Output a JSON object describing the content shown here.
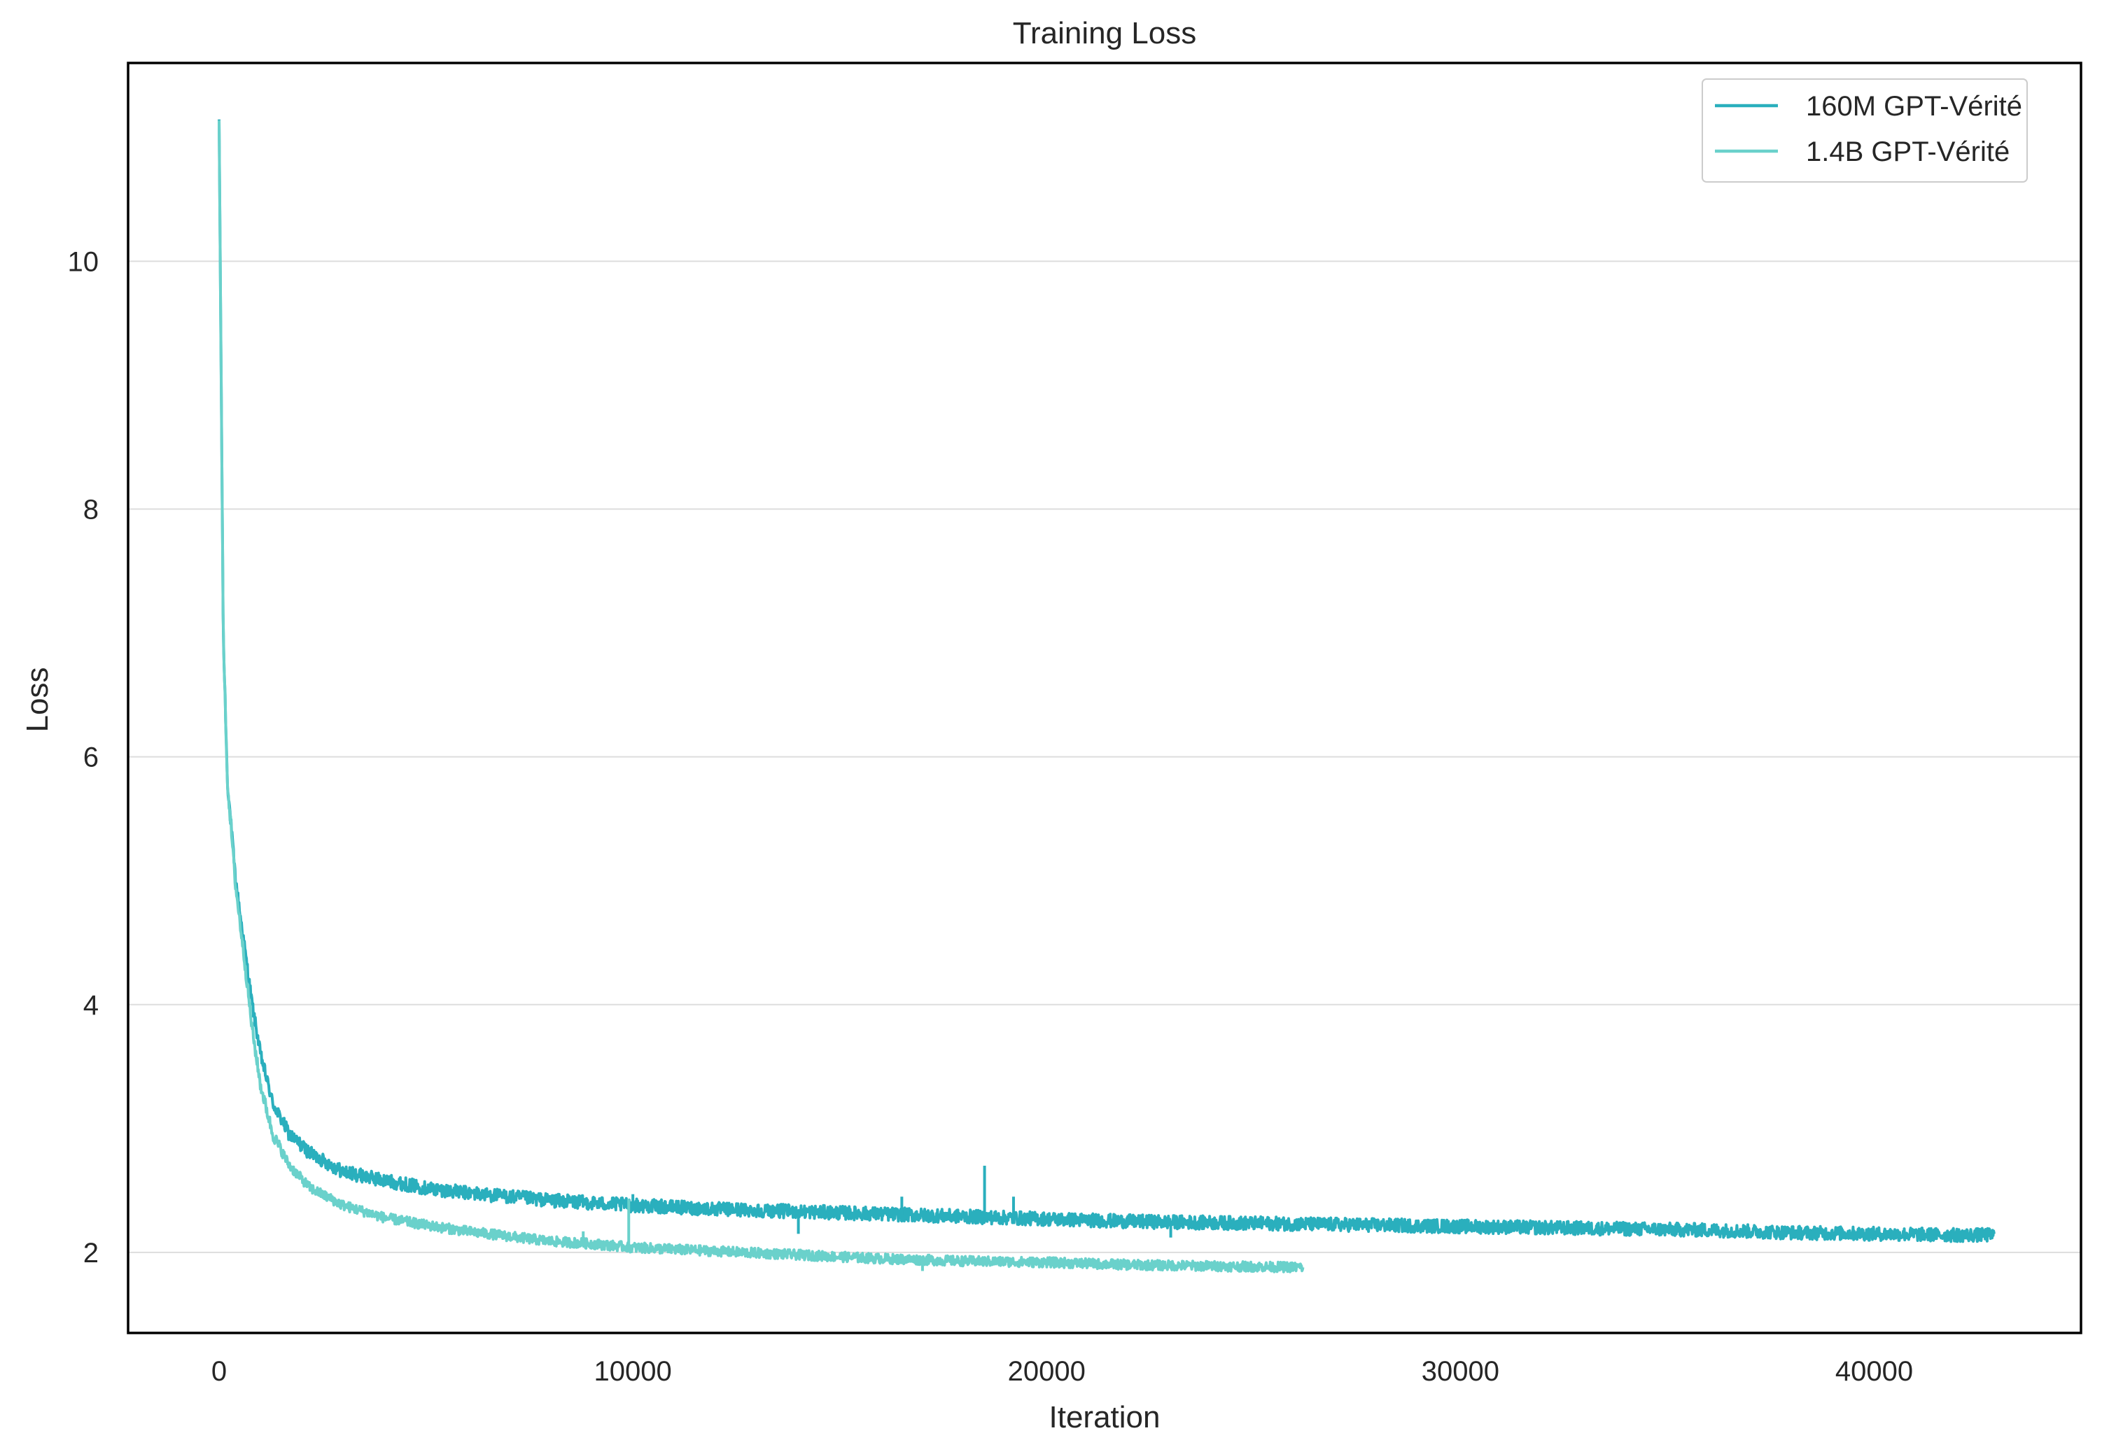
{
  "chart_data": {
    "type": "line",
    "title": "Training Loss",
    "xlabel": "Iteration",
    "ylabel": "Loss",
    "xlim": [
      -2200,
      45000
    ],
    "ylim": [
      1.35,
      11.6
    ],
    "xticks": [
      0,
      10000,
      20000,
      30000,
      40000
    ],
    "xtick_labels": [
      "0",
      "10000",
      "20000",
      "30000",
      "40000"
    ],
    "yticks": [
      2,
      4,
      6,
      8,
      10
    ],
    "ytick_labels": [
      "2",
      "4",
      "6",
      "8",
      "10"
    ],
    "grid": "horizontal",
    "legend_position": "top-right",
    "series": [
      {
        "name": "160M GPT-Vérité",
        "color": "#2aafbd",
        "points": [
          [
            0,
            11.1
          ],
          [
            100,
            7.0
          ],
          [
            200,
            5.8
          ],
          [
            400,
            5.0
          ],
          [
            600,
            4.5
          ],
          [
            800,
            4.0
          ],
          [
            1000,
            3.6
          ],
          [
            1300,
            3.2
          ],
          [
            1700,
            2.95
          ],
          [
            2200,
            2.8
          ],
          [
            3000,
            2.65
          ],
          [
            4000,
            2.58
          ],
          [
            5000,
            2.52
          ],
          [
            6000,
            2.48
          ],
          [
            7000,
            2.45
          ],
          [
            8000,
            2.42
          ],
          [
            10000,
            2.38
          ],
          [
            12000,
            2.35
          ],
          [
            14000,
            2.33
          ],
          [
            16000,
            2.31
          ],
          [
            18000,
            2.29
          ],
          [
            20000,
            2.27
          ],
          [
            22000,
            2.25
          ],
          [
            24000,
            2.24
          ],
          [
            26000,
            2.23
          ],
          [
            28000,
            2.22
          ],
          [
            30000,
            2.21
          ],
          [
            32000,
            2.2
          ],
          [
            34000,
            2.19
          ],
          [
            36000,
            2.18
          ],
          [
            38000,
            2.16
          ],
          [
            40000,
            2.15
          ],
          [
            42000,
            2.14
          ],
          [
            42900,
            2.14
          ]
        ],
        "spikes": [
          [
            18500,
            2.7
          ],
          [
            10000,
            2.47
          ],
          [
            19200,
            2.45
          ],
          [
            16500,
            2.45
          ],
          [
            14000,
            2.15
          ],
          [
            23000,
            2.12
          ]
        ]
      },
      {
        "name": "1.4B GPT-Vérité",
        "color": "#6ad1cb",
        "points": [
          [
            0,
            11.1
          ],
          [
            100,
            7.0
          ],
          [
            200,
            5.8
          ],
          [
            400,
            4.95
          ],
          [
            600,
            4.4
          ],
          [
            800,
            3.8
          ],
          [
            1000,
            3.35
          ],
          [
            1300,
            2.95
          ],
          [
            1700,
            2.7
          ],
          [
            2200,
            2.52
          ],
          [
            3000,
            2.38
          ],
          [
            4000,
            2.28
          ],
          [
            5000,
            2.22
          ],
          [
            6000,
            2.17
          ],
          [
            7000,
            2.13
          ],
          [
            8000,
            2.09
          ],
          [
            9000,
            2.07
          ],
          [
            10000,
            2.04
          ],
          [
            12000,
            2.01
          ],
          [
            14000,
            1.98
          ],
          [
            16000,
            1.95
          ],
          [
            18000,
            1.93
          ],
          [
            20000,
            1.92
          ],
          [
            22000,
            1.9
          ],
          [
            24000,
            1.89
          ],
          [
            26200,
            1.88
          ]
        ],
        "spikes": [
          [
            9900,
            2.43
          ],
          [
            8800,
            2.17
          ],
          [
            17000,
            1.85
          ]
        ]
      }
    ]
  }
}
